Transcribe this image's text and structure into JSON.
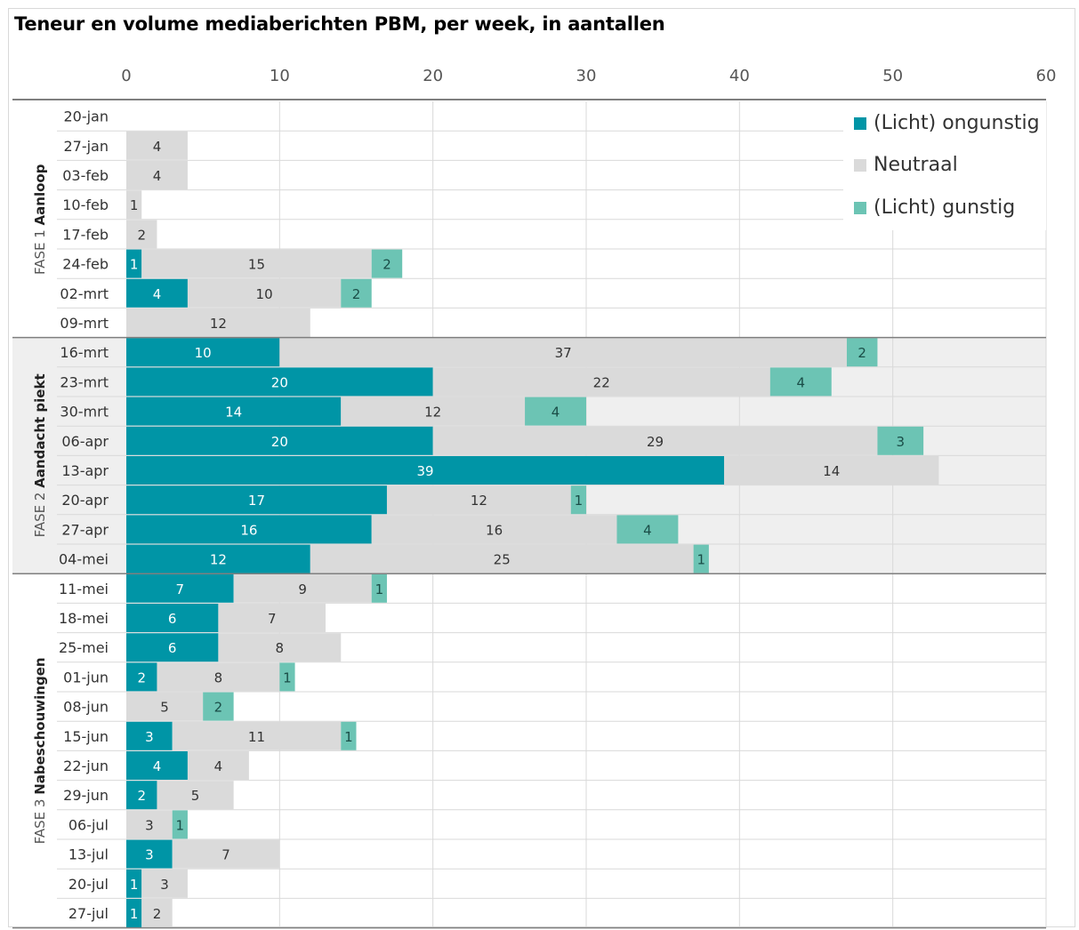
{
  "chart_data": {
    "type": "bar",
    "orientation": "horizontal",
    "stacked": true,
    "title": "Teneur en volume mediaberichten PBM, per week, in aantallen",
    "xlim": [
      0,
      60
    ],
    "x_ticks": [
      0,
      10,
      20,
      30,
      40,
      50,
      60
    ],
    "grid": true,
    "legend_position": "top-right",
    "categories": [
      "20-jan",
      "27-jan",
      "03-feb",
      "10-feb",
      "17-feb",
      "24-feb",
      "02-mrt",
      "09-mrt",
      "16-mrt",
      "23-mrt",
      "30-mrt",
      "06-apr",
      "13-apr",
      "20-apr",
      "27-apr",
      "04-mei",
      "11-mei",
      "18-mei",
      "25-mei",
      "01-jun",
      "08-jun",
      "15-jun",
      "22-jun",
      "29-jun",
      "06-jul",
      "13-jul",
      "20-jul",
      "27-jul"
    ],
    "series": [
      {
        "name": "(Licht) ongunstig",
        "color": "#0095a6",
        "values": [
          0,
          0,
          0,
          0,
          0,
          1,
          4,
          0,
          10,
          20,
          14,
          20,
          39,
          17,
          16,
          12,
          7,
          6,
          6,
          2,
          0,
          3,
          4,
          2,
          0,
          3,
          1,
          1
        ]
      },
      {
        "name": "Neutraal",
        "color": "#dadada",
        "values": [
          0,
          4,
          4,
          1,
          2,
          15,
          10,
          12,
          37,
          22,
          12,
          29,
          14,
          12,
          16,
          25,
          9,
          7,
          8,
          8,
          5,
          11,
          4,
          5,
          3,
          7,
          3,
          2
        ]
      },
      {
        "name": "(Licht) gunstig",
        "color": "#6cc4b4",
        "values": [
          0,
          0,
          0,
          0,
          0,
          2,
          2,
          0,
          2,
          4,
          4,
          3,
          0,
          1,
          4,
          1,
          1,
          0,
          0,
          1,
          2,
          1,
          0,
          0,
          1,
          0,
          0,
          0
        ]
      }
    ],
    "phases": [
      {
        "prefix": "FASE 1 ",
        "name": "Aanloop",
        "start": 0,
        "end": 7,
        "shaded": false
      },
      {
        "prefix": "FASE 2 ",
        "name": "Aandacht piekt",
        "start": 8,
        "end": 15,
        "shaded": true
      },
      {
        "prefix": "FASE 3 ",
        "name": "Nabeschouwingen",
        "start": 16,
        "end": 27,
        "shaded": false
      }
    ],
    "colors": {
      "phase_shade": "#efefef",
      "grid": "#d9d9d9",
      "divider": "#7f7f7f"
    }
  }
}
